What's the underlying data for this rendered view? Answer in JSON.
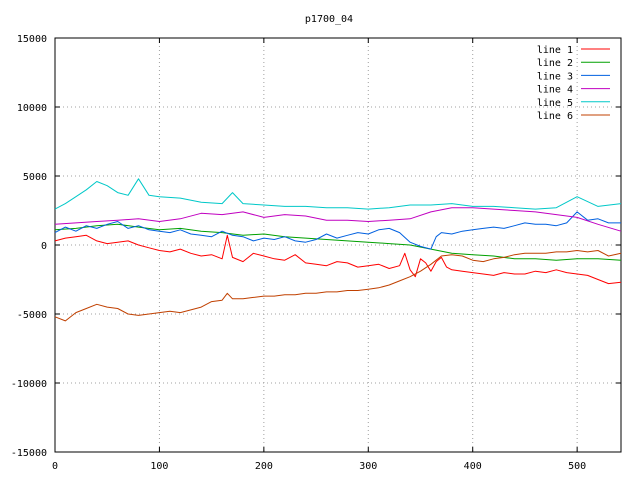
{
  "chart_data": {
    "type": "line",
    "title": "p1700_04",
    "xlim": [
      0,
      542
    ],
    "ylim": [
      -15000,
      15000
    ],
    "x_ticks": [
      0,
      100,
      200,
      300,
      400,
      500
    ],
    "y_ticks": [
      -15000,
      -10000,
      -5000,
      0,
      5000,
      10000,
      15000
    ],
    "grid": true,
    "legend_position": "top-right",
    "series": [
      {
        "name": "line 1",
        "color": "#ff0000",
        "x": [
          0,
          10,
          20,
          30,
          40,
          50,
          60,
          70,
          80,
          90,
          100,
          110,
          120,
          130,
          140,
          150,
          160,
          165,
          170,
          180,
          190,
          200,
          210,
          220,
          230,
          240,
          250,
          260,
          270,
          280,
          290,
          300,
          310,
          320,
          330,
          335,
          340,
          345,
          350,
          355,
          360,
          365,
          370,
          375,
          380,
          390,
          400,
          410,
          420,
          430,
          440,
          450,
          460,
          470,
          480,
          490,
          500,
          510,
          520,
          530,
          542
        ],
        "y": [
          300,
          500,
          600,
          700,
          300,
          100,
          200,
          300,
          0,
          -200,
          -400,
          -500,
          -300,
          -600,
          -800,
          -700,
          -1000,
          700,
          -900,
          -1200,
          -600,
          -800,
          -1000,
          -1100,
          -700,
          -1300,
          -1400,
          -1500,
          -1200,
          -1300,
          -1600,
          -1500,
          -1400,
          -1700,
          -1500,
          -600,
          -1800,
          -2300,
          -1000,
          -1300,
          -1900,
          -1200,
          -900,
          -1600,
          -1800,
          -1900,
          -2000,
          -2100,
          -2200,
          -2000,
          -2100,
          -2100,
          -1900,
          -2000,
          -1800,
          -2000,
          -2100,
          -2200,
          -2500,
          -2800,
          -2700
        ]
      },
      {
        "name": "line 2",
        "color": "#00a000",
        "x": [
          0,
          20,
          40,
          60,
          80,
          100,
          120,
          140,
          160,
          180,
          200,
          220,
          240,
          260,
          280,
          300,
          320,
          340,
          360,
          380,
          400,
          420,
          440,
          460,
          480,
          500,
          520,
          542
        ],
        "y": [
          1100,
          1200,
          1400,
          1500,
          1300,
          1100,
          1200,
          1000,
          900,
          700,
          800,
          600,
          500,
          400,
          300,
          200,
          100,
          0,
          -300,
          -600,
          -700,
          -800,
          -1000,
          -1000,
          -1100,
          -1000,
          -1000,
          -1100
        ]
      },
      {
        "name": "line 3",
        "color": "#0060e0",
        "x": [
          0,
          10,
          20,
          30,
          40,
          50,
          60,
          70,
          80,
          90,
          100,
          110,
          120,
          130,
          140,
          150,
          160,
          170,
          180,
          190,
          200,
          210,
          220,
          230,
          240,
          250,
          260,
          270,
          280,
          290,
          300,
          310,
          320,
          330,
          340,
          350,
          360,
          365,
          370,
          380,
          390,
          400,
          410,
          420,
          430,
          440,
          450,
          460,
          470,
          480,
          490,
          500,
          510,
          520,
          530,
          542
        ],
        "y": [
          900,
          1300,
          1000,
          1400,
          1200,
          1500,
          1700,
          1200,
          1400,
          1100,
          1000,
          900,
          1100,
          800,
          700,
          600,
          1000,
          700,
          600,
          300,
          500,
          400,
          600,
          300,
          200,
          400,
          800,
          500,
          700,
          900,
          800,
          1100,
          1200,
          900,
          200,
          -100,
          -300,
          600,
          900,
          800,
          1000,
          1100,
          1200,
          1300,
          1200,
          1400,
          1600,
          1500,
          1500,
          1400,
          1600,
          2400,
          1800,
          1900,
          1600,
          1600
        ]
      },
      {
        "name": "line 4",
        "color": "#c000c0",
        "x": [
          0,
          20,
          40,
          60,
          80,
          100,
          120,
          140,
          160,
          180,
          200,
          220,
          240,
          260,
          280,
          300,
          320,
          340,
          360,
          380,
          400,
          420,
          440,
          460,
          480,
          500,
          520,
          542
        ],
        "y": [
          1500,
          1600,
          1700,
          1800,
          1900,
          1700,
          1900,
          2300,
          2200,
          2400,
          2000,
          2200,
          2100,
          1800,
          1800,
          1700,
          1800,
          1900,
          2400,
          2700,
          2700,
          2600,
          2500,
          2400,
          2200,
          2000,
          1500,
          1000
        ]
      },
      {
        "name": "line 5",
        "color": "#00c8c8",
        "x": [
          0,
          10,
          20,
          30,
          40,
          50,
          60,
          70,
          80,
          90,
          100,
          120,
          140,
          160,
          170,
          180,
          200,
          220,
          240,
          260,
          280,
          300,
          320,
          340,
          360,
          380,
          400,
          420,
          440,
          460,
          480,
          500,
          520,
          542
        ],
        "y": [
          2600,
          3000,
          3500,
          4000,
          4600,
          4300,
          3800,
          3600,
          4800,
          3600,
          3500,
          3400,
          3100,
          3000,
          3800,
          3000,
          2900,
          2800,
          2800,
          2700,
          2700,
          2600,
          2700,
          2900,
          2900,
          3000,
          2800,
          2800,
          2700,
          2600,
          2700,
          3500,
          2800,
          3000
        ]
      },
      {
        "name": "line 6",
        "color": "#c04000",
        "x": [
          0,
          10,
          20,
          30,
          40,
          50,
          60,
          70,
          80,
          90,
          100,
          110,
          120,
          130,
          140,
          150,
          160,
          165,
          170,
          180,
          190,
          200,
          210,
          220,
          230,
          240,
          250,
          260,
          270,
          280,
          290,
          300,
          310,
          320,
          330,
          340,
          350,
          360,
          370,
          380,
          390,
          400,
          410,
          420,
          430,
          440,
          450,
          460,
          470,
          480,
          490,
          500,
          510,
          520,
          530,
          542
        ],
        "y": [
          -5200,
          -5500,
          -4900,
          -4600,
          -4300,
          -4500,
          -4600,
          -5000,
          -5100,
          -5000,
          -4900,
          -4800,
          -4900,
          -4700,
          -4500,
          -4100,
          -4000,
          -3500,
          -3900,
          -3900,
          -3800,
          -3700,
          -3700,
          -3600,
          -3600,
          -3500,
          -3500,
          -3400,
          -3400,
          -3300,
          -3300,
          -3200,
          -3100,
          -2900,
          -2600,
          -2300,
          -1900,
          -1400,
          -800,
          -700,
          -800,
          -1100,
          -1200,
          -1000,
          -900,
          -700,
          -600,
          -600,
          -600,
          -500,
          -500,
          -400,
          -500,
          -400,
          -800,
          -600
        ]
      }
    ]
  }
}
